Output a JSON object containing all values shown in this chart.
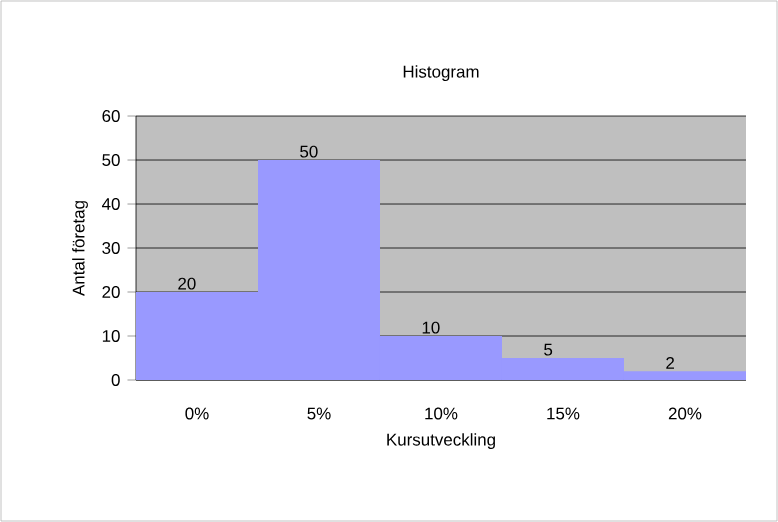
{
  "chart_data": {
    "type": "bar",
    "title": "Histogram",
    "xlabel": "Kursutveckling",
    "ylabel": "Antal företag",
    "categories": [
      "0%",
      "5%",
      "10%",
      "15%",
      "20%"
    ],
    "values": [
      20,
      50,
      10,
      5,
      2
    ],
    "color": "#9999ff",
    "ylim": [
      0,
      60
    ],
    "yticks": [
      0,
      10,
      20,
      30,
      40,
      50,
      60
    ],
    "grid": "y",
    "data_labels": true
  }
}
